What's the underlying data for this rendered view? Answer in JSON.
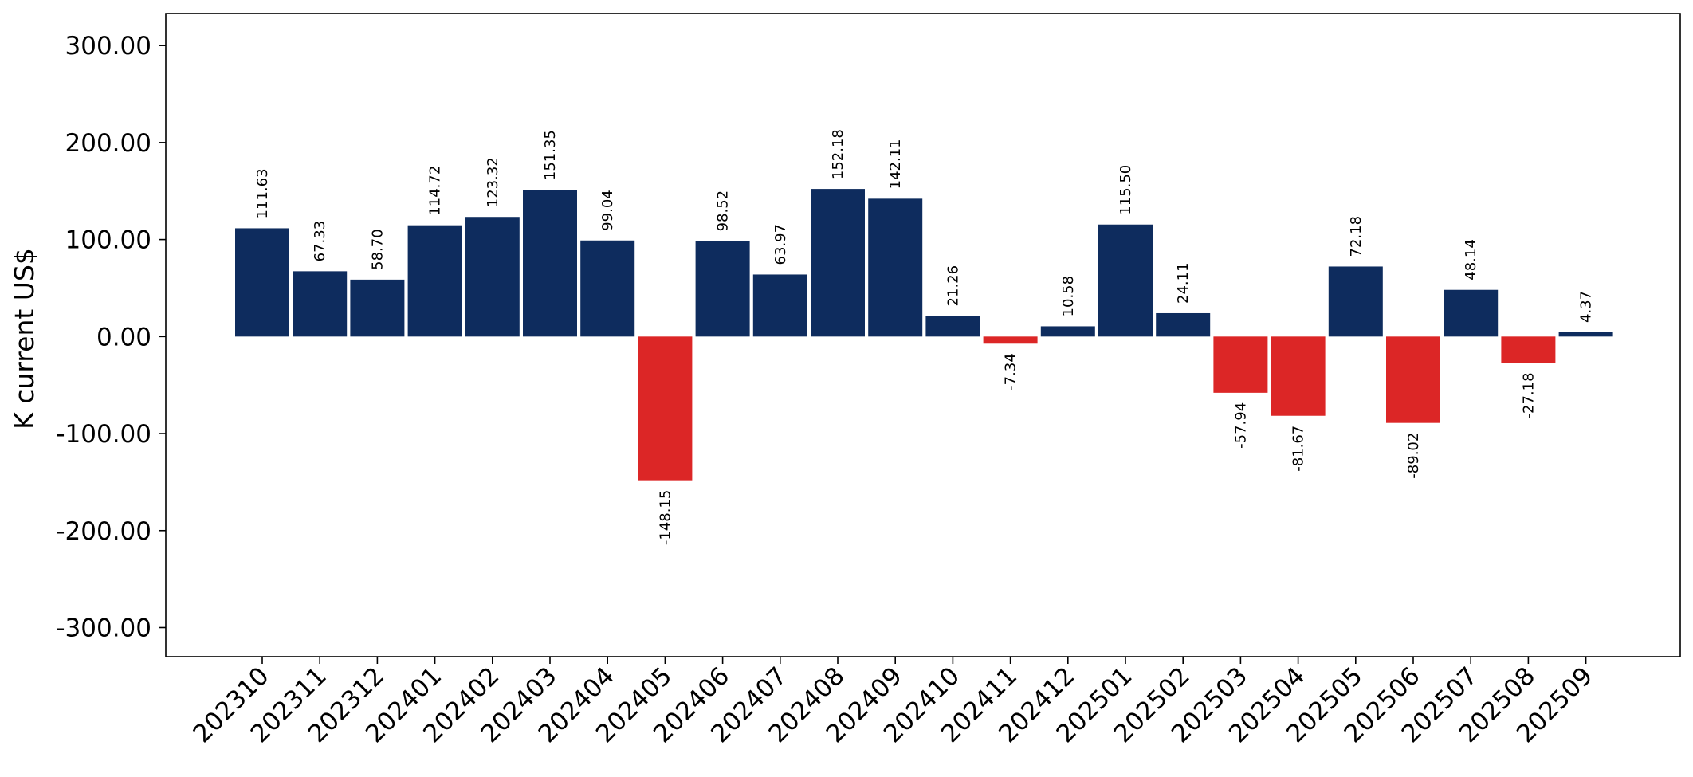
{
  "chart_data": {
    "type": "bar",
    "title": "",
    "xlabel": "",
    "ylabel": "K current US$",
    "ylim": [
      -330,
      333
    ],
    "yticks": [
      "300.00",
      "200.00",
      "100.00",
      "0.00",
      "-100.00",
      "-200.00",
      "-300.00"
    ],
    "ytick_values": [
      300,
      200,
      100,
      0,
      -100,
      -200,
      -300
    ],
    "grid": false,
    "legend": "none",
    "categories": [
      "202310",
      "202311",
      "202312",
      "202401",
      "202402",
      "202403",
      "202404",
      "202405",
      "202406",
      "202407",
      "202408",
      "202409",
      "202410",
      "202411",
      "202412",
      "202501",
      "202502",
      "202503",
      "202504",
      "202505",
      "202506",
      "202507",
      "202508",
      "202509"
    ],
    "values": [
      111.63,
      67.33,
      58.7,
      114.72,
      123.32,
      151.35,
      99.04,
      -148.15,
      98.52,
      63.97,
      152.18,
      142.11,
      21.26,
      -7.34,
      10.58,
      115.5,
      24.11,
      -57.94,
      -81.67,
      72.18,
      -89.02,
      48.14,
      -27.18,
      4.37
    ],
    "value_labels": [
      "111.63",
      "67.33",
      "58.70",
      "114.72",
      "123.32",
      "151.35",
      "99.04",
      "-148.15",
      "98.52",
      "63.97",
      "152.18",
      "142.11",
      "21.26",
      "-7.34",
      "10.58",
      "115.50",
      "24.11",
      "-57.94",
      "-81.67",
      "72.18",
      "-89.02",
      "48.14",
      "-27.18",
      "4.37"
    ],
    "colors": {
      "positive": "#0e2c5e",
      "negative": "#dc2626"
    }
  }
}
